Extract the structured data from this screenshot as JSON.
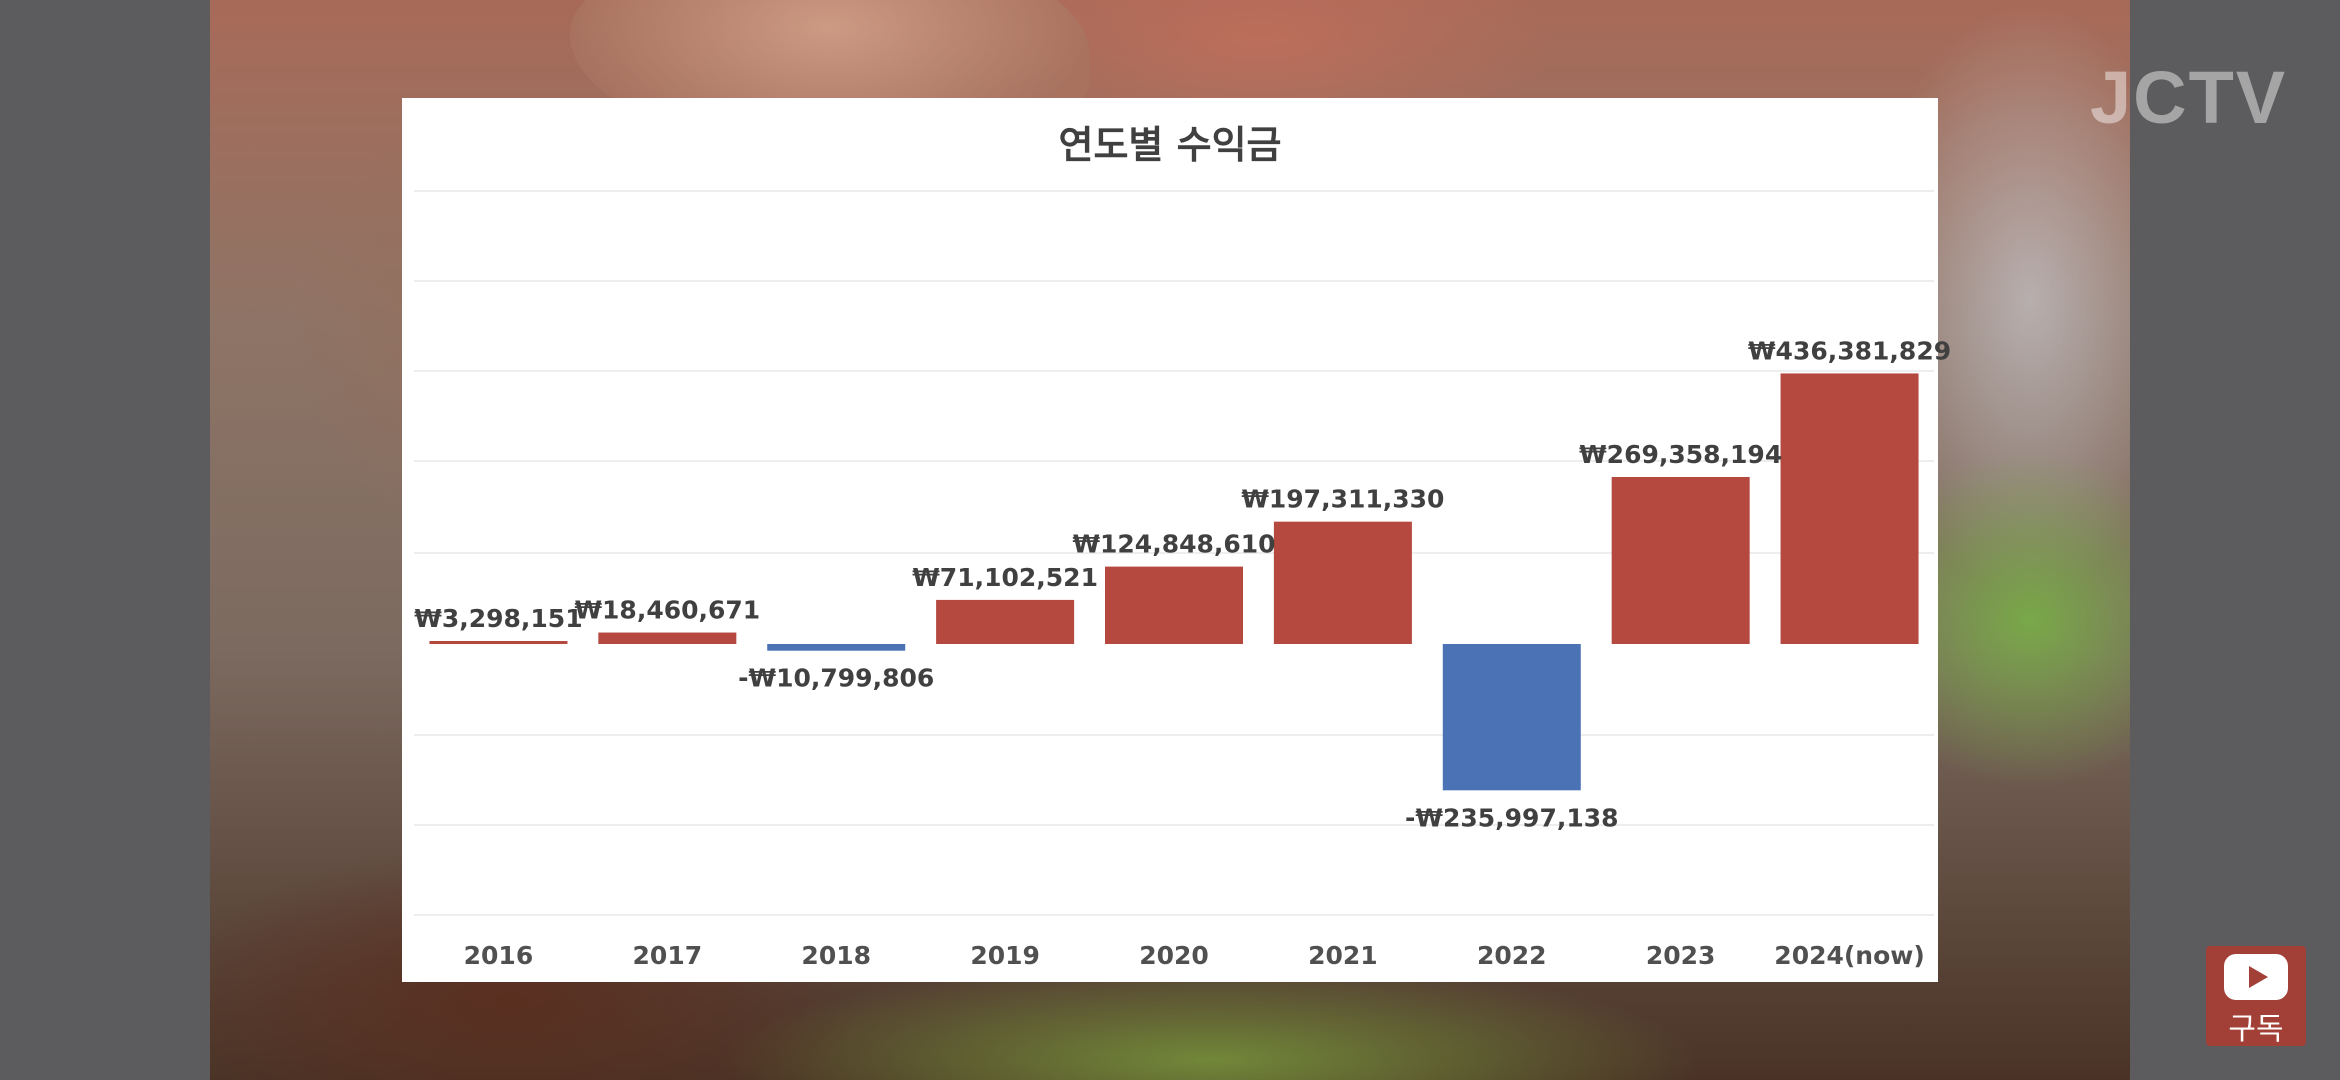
{
  "video": {
    "watermark": "JCTV"
  },
  "subscribe": {
    "label": "구독"
  },
  "colors": {
    "positive_bar": "#b5483f",
    "negative_bar": "#4a72b4",
    "gridline": "#eeeeee",
    "subscribe_bg": "#a23f36"
  },
  "chart_data": {
    "type": "bar",
    "title": "연도별 수익금",
    "xlabel": "",
    "ylabel": "",
    "ylim": [
      -300000000,
      500000000
    ],
    "grid": true,
    "legend": "none",
    "categories": [
      "2016",
      "2017",
      "2018",
      "2019",
      "2020",
      "2021",
      "2022",
      "2023",
      "2024(now)"
    ],
    "values": [
      3298151,
      18460671,
      -10799806,
      71102521,
      124848610,
      197311330,
      -235997138,
      269358194,
      436381829
    ],
    "data_labels": [
      "₩3,298,151",
      "₩18,460,671",
      "-₩10,799,806",
      "₩71,102,521",
      "₩124,848,610",
      "₩197,311,330",
      "-₩235,997,138",
      "₩269,358,194",
      "₩436,381,829"
    ]
  }
}
